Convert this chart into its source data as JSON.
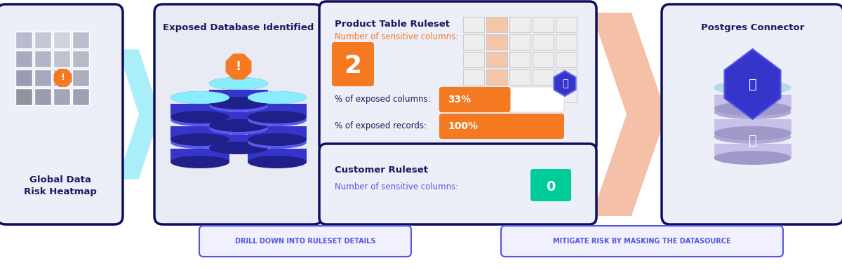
{
  "bg_color": "#ffffff",
  "card_border_color": "#0d0d5e",
  "card1_bg": "#eceef8",
  "card2_bg": "#e8eaf4",
  "card3_bg": "#eceef8",
  "card4_bg": "#eceef8",
  "orange_color": "#f47920",
  "teal_color": "#00cc99",
  "blue_text": "#5555dd",
  "dark_text": "#1a1a5e",
  "white": "#ffffff",
  "grid_orange": "#f5c5a8",
  "grid_empty": "#e8e8e8",
  "grid_border": "#cccccc",
  "arrow_blue": "#aaeef8",
  "arrow_salmon": "#f5c0a8",
  "db_body": "#3535cc",
  "db_rim": "#5050dd",
  "db_shadow": "#2020aa",
  "db_top": "#88e8f8",
  "pg_cyl": "#c0b8e0",
  "pg_cyl_dark": "#a8a0cc",
  "pg_cyl_top": "#b0d8e8",
  "pg_cube": "#3535cc",
  "btn_border": "#5555dd",
  "btn_text": "#5555dd",
  "card1_title_line1": "Global Data",
  "card1_title_line2": "Risk Heatmap",
  "card2_title": "Exposed Database Identified",
  "card3a_title": "Product Table Ruleset",
  "card3a_subtitle": "Number of sensitive columns:",
  "card3a_value": "2",
  "card3a_pct_col_label": "% of exposed columns:",
  "card3a_pct_col_value": "33%",
  "card3a_pct_rec_label": "% of exposed records:",
  "card3a_pct_rec_value": "100%",
  "card3b_title": "Customer Ruleset",
  "card3b_subtitle": "Number of sensitive columns:",
  "card3b_value": "0",
  "card4_title": "Postgres Connector",
  "btn1_text": "DRILL DOWN INTO RULESET DETAILS",
  "btn2_text": "MITIGATE RISK BY MASKING THE DATASOURCE",
  "heatmap_colors": [
    [
      "#b8bace",
      "#c4c6d4",
      "#d0d2de",
      "#bbbdcc"
    ],
    [
      "#a8aabe",
      "#b4b6c8",
      "#c0c2ce",
      "#b8baca"
    ],
    [
      "#9a9cb2",
      "#a6a8bc",
      "#b2b4c4",
      "#acaec0"
    ],
    [
      "#90929c",
      "#9a9cb0",
      "#a4a6b8",
      "#9ea0b4"
    ]
  ],
  "heatmap_orange_row": 1,
  "heatmap_orange_col": 3,
  "grid3a_rows": 5,
  "grid3a_cols": 5,
  "grid3a_orange_col": 1
}
